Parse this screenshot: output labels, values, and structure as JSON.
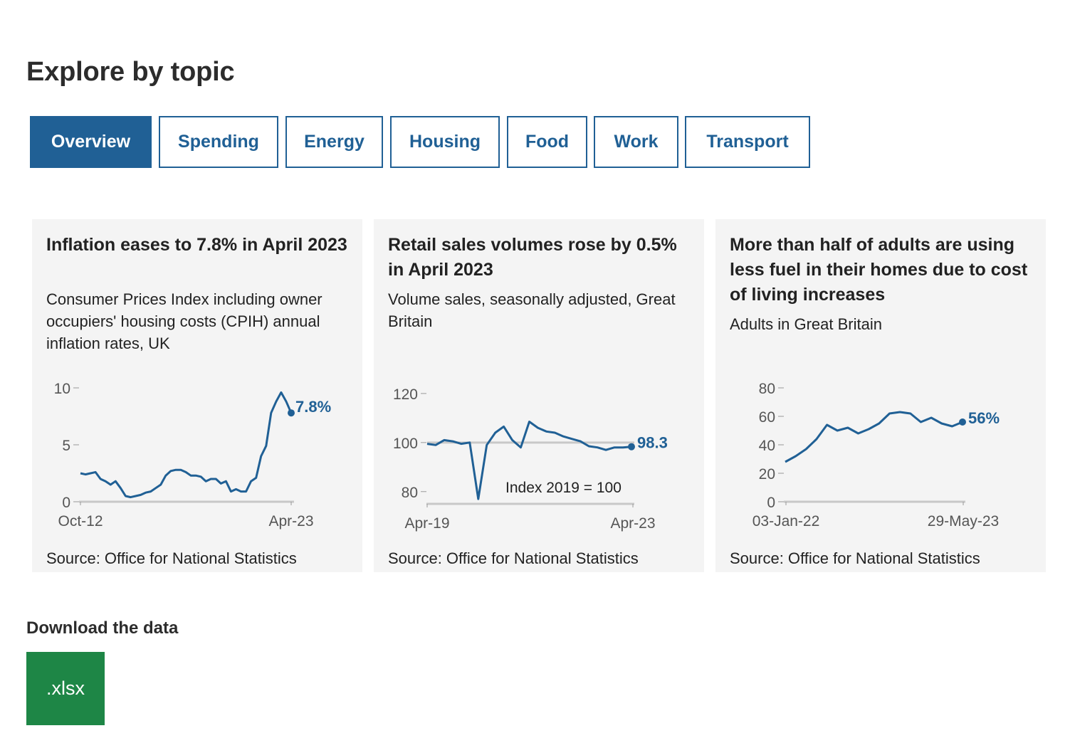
{
  "page": {
    "title": "Explore by topic"
  },
  "tabs": [
    {
      "label": "Overview",
      "active": true
    },
    {
      "label": "Spending",
      "active": false
    },
    {
      "label": "Energy",
      "active": false
    },
    {
      "label": "Housing",
      "active": false
    },
    {
      "label": "Food",
      "active": false
    },
    {
      "label": "Work",
      "active": false
    },
    {
      "label": "Transport",
      "active": false
    }
  ],
  "cards": [
    {
      "title": "Inflation eases to 7.8% in April 2023",
      "subtitle": "Consumer Prices Index including owner occupiers' housing costs (CPIH) annual inflation rates, UK",
      "source": "Source: Office for National Statistics"
    },
    {
      "title": "Retail sales volumes rose by 0.5% in April 2023",
      "subtitle": "Volume sales, seasonally adjusted, Great Britain",
      "source": "Source: Office for National Statistics"
    },
    {
      "title": "More than half of adults are using less fuel in their homes due to cost of living increases",
      "subtitle": "Adults in Great Britain",
      "source": "Source: Office for National Statistics"
    }
  ],
  "download": {
    "label": "Download the data",
    "button_label": ".xlsx"
  },
  "colors": {
    "brand": "#206095",
    "card_bg": "#f4f4f4",
    "reference_line": "#c8c8c8",
    "download_button": "#1e8646"
  },
  "chart_data": [
    {
      "type": "line",
      "title": "Inflation eases to 7.8% in April 2023",
      "ylim": [
        0,
        10
      ],
      "yticks": [
        0,
        5,
        10
      ],
      "xtick_labels": [
        "Oct-12",
        "Apr-23"
      ],
      "end_label": "7.8%",
      "series": [
        {
          "x": [
            "Oct-12",
            "Jan-13",
            "Apr-13",
            "Jul-13",
            "Oct-13",
            "Jan-14",
            "Apr-14",
            "Jul-14",
            "Oct-14",
            "Jan-15",
            "Apr-15",
            "Jul-15",
            "Oct-15",
            "Jan-16",
            "Apr-16",
            "Jul-16",
            "Oct-16",
            "Jan-17",
            "Apr-17",
            "Jul-17",
            "Oct-17",
            "Jan-18",
            "Apr-18",
            "Jul-18",
            "Oct-18",
            "Jan-19",
            "Apr-19",
            "Jul-19",
            "Oct-19",
            "Jan-20",
            "Apr-20",
            "Jul-20",
            "Oct-20",
            "Jan-21",
            "Apr-21",
            "Jul-21",
            "Oct-21",
            "Jan-22",
            "Apr-22",
            "Jul-22",
            "Oct-22",
            "Jan-23",
            "Apr-23"
          ],
          "values": [
            2.5,
            2.4,
            2.5,
            2.6,
            2.0,
            1.8,
            1.5,
            1.8,
            1.2,
            0.5,
            0.4,
            0.5,
            0.6,
            0.8,
            0.9,
            1.2,
            1.5,
            2.3,
            2.7,
            2.8,
            2.8,
            2.6,
            2.3,
            2.3,
            2.2,
            1.8,
            2.0,
            2.0,
            1.6,
            1.8,
            0.9,
            1.1,
            0.9,
            0.9,
            1.8,
            2.1,
            4.0,
            4.9,
            7.8,
            8.8,
            9.6,
            8.8,
            7.8
          ]
        }
      ]
    },
    {
      "type": "line",
      "title": "Retail sales volumes rose by 0.5% in April 2023",
      "ylim": [
        75,
        122
      ],
      "yticks": [
        80,
        100,
        120
      ],
      "xtick_labels": [
        "Apr-19",
        "Apr-23"
      ],
      "reference_line": 100,
      "annotation": "Index 2019 = 100",
      "end_label": "98.3",
      "series": [
        {
          "x": [
            "Apr-19",
            "Jun-19",
            "Aug-19",
            "Oct-19",
            "Dec-19",
            "Feb-20",
            "Apr-20",
            "Jun-20",
            "Aug-20",
            "Oct-20",
            "Dec-20",
            "Feb-21",
            "Apr-21",
            "Jun-21",
            "Aug-21",
            "Oct-21",
            "Dec-21",
            "Feb-22",
            "Apr-22",
            "Jun-22",
            "Aug-22",
            "Oct-22",
            "Dec-22",
            "Feb-23",
            "Apr-23"
          ],
          "values": [
            99.5,
            99.0,
            101.0,
            100.5,
            99.5,
            100.0,
            77.0,
            99.0,
            104.0,
            106.5,
            101.0,
            98.0,
            108.5,
            106.0,
            104.5,
            104.0,
            102.5,
            101.5,
            100.5,
            98.5,
            98.0,
            97.0,
            98.0,
            98.0,
            98.3
          ]
        }
      ]
    },
    {
      "type": "line",
      "title": "More than half of adults are using less fuel in their homes due to cost of living increases",
      "ylim": [
        0,
        80
      ],
      "yticks": [
        0,
        20,
        40,
        60,
        80
      ],
      "xtick_labels": [
        "03-Jan-22",
        "29-May-23"
      ],
      "end_label": "56%",
      "series": [
        {
          "x": [
            "03-Jan-22",
            "Feb-22",
            "Mar-22",
            "Apr-22",
            "May-22",
            "Jun-22",
            "Jul-22",
            "Aug-22",
            "Sep-22",
            "Oct-22",
            "Nov-22",
            "Dec-22",
            "Jan-23",
            "Feb-23",
            "Mar-23",
            "Apr-23",
            "May-23",
            "29-May-23"
          ],
          "values": [
            28,
            32,
            37,
            44,
            54,
            50,
            52,
            48,
            51,
            55,
            62,
            63,
            62,
            56,
            59,
            55,
            53,
            56
          ]
        }
      ]
    }
  ]
}
